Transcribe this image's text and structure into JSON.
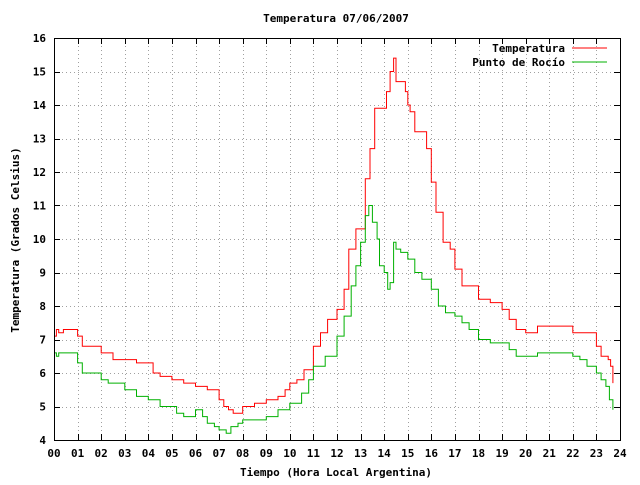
{
  "chart_data": {
    "type": "line",
    "title": "Temperatura 07/06/2007",
    "xlabel": "Tiempo (Hora Local Argentina)",
    "ylabel": "Temperatura (Grados Celsius)",
    "xlim": [
      0,
      24
    ],
    "ylim": [
      4,
      16
    ],
    "x_ticks": [
      "00",
      "01",
      "02",
      "03",
      "04",
      "05",
      "06",
      "07",
      "08",
      "09",
      "10",
      "11",
      "12",
      "13",
      "14",
      "15",
      "16",
      "17",
      "18",
      "19",
      "20",
      "21",
      "22",
      "23",
      "24"
    ],
    "y_ticks": [
      "4",
      "5",
      "6",
      "7",
      "8",
      "9",
      "10",
      "11",
      "12",
      "13",
      "14",
      "15",
      "16"
    ],
    "grid": true,
    "legend_position": "top-right",
    "series": [
      {
        "name": "Temperatura",
        "color": "#ff0000",
        "x": [
          0.0,
          0.1,
          0.2,
          0.25,
          0.4,
          0.5,
          1.0,
          1.2,
          1.5,
          2.0,
          2.5,
          3.0,
          3.5,
          4.0,
          4.2,
          4.5,
          5.0,
          5.5,
          6.0,
          6.5,
          7.0,
          7.2,
          7.4,
          7.6,
          8.0,
          8.5,
          9.0,
          9.5,
          9.8,
          10.0,
          10.3,
          10.6,
          11.0,
          11.3,
          11.6,
          12.0,
          12.3,
          12.5,
          12.8,
          13.0,
          13.2,
          13.4,
          13.6,
          13.8,
          14.0,
          14.1,
          14.25,
          14.4,
          14.5,
          14.6,
          14.75,
          14.9,
          15.0,
          15.1,
          15.3,
          15.5,
          15.8,
          16.0,
          16.2,
          16.5,
          16.8,
          17.0,
          17.3,
          17.6,
          18.0,
          18.5,
          19.0,
          19.3,
          19.6,
          20.0,
          20.5,
          21.0,
          21.5,
          22.0,
          22.3,
          22.6,
          23.0,
          23.2,
          23.35,
          23.5,
          23.6
        ],
        "y": [
          7.1,
          7.3,
          7.2,
          7.2,
          7.3,
          7.3,
          7.1,
          6.8,
          6.8,
          6.6,
          6.4,
          6.4,
          6.3,
          6.3,
          6.0,
          5.9,
          5.8,
          5.7,
          5.6,
          5.5,
          5.2,
          5.0,
          4.9,
          4.8,
          5.0,
          5.1,
          5.2,
          5.3,
          5.5,
          5.7,
          5.8,
          6.1,
          6.8,
          7.2,
          7.6,
          7.9,
          8.5,
          9.7,
          10.3,
          10.3,
          11.8,
          12.7,
          13.9,
          13.9,
          13.9,
          14.4,
          15.0,
          15.4,
          14.7,
          14.7,
          14.7,
          14.4,
          14.0,
          13.8,
          13.2,
          13.2,
          12.7,
          11.7,
          10.8,
          9.9,
          9.7,
          9.1,
          8.6,
          8.6,
          8.2,
          8.1,
          7.9,
          7.6,
          7.3,
          7.2,
          7.4,
          7.4,
          7.4,
          7.2,
          7.2,
          7.2,
          6.8,
          6.5,
          6.5,
          6.4,
          6.2
        ],
        "extra": {
          "end": [
            [
              23.7,
              5.7
            ]
          ]
        }
      },
      {
        "name": "Punto de Rocío",
        "color": "#00b000",
        "x": [
          0.0,
          0.1,
          0.2,
          0.5,
          1.0,
          1.2,
          1.5,
          2.0,
          2.3,
          2.5,
          3.0,
          3.5,
          4.0,
          4.2,
          4.5,
          5.0,
          5.2,
          5.5,
          6.0,
          6.3,
          6.5,
          6.8,
          7.0,
          7.3,
          7.5,
          7.8,
          8.0,
          8.5,
          9.0,
          9.5,
          10.0,
          10.5,
          10.8,
          11.0,
          11.5,
          12.0,
          12.3,
          12.6,
          12.8,
          13.0,
          13.2,
          13.35,
          13.5,
          13.7,
          13.8,
          14.0,
          14.15,
          14.25,
          14.4,
          14.5,
          14.7,
          15.0,
          15.3,
          15.6,
          16.0,
          16.3,
          16.6,
          17.0,
          17.3,
          17.6,
          18.0,
          18.5,
          19.0,
          19.3,
          19.6,
          20.0,
          20.5,
          21.0,
          21.5,
          22.0,
          22.3,
          22.6,
          23.0,
          23.2,
          23.4,
          23.55
        ],
        "y": [
          6.6,
          6.5,
          6.6,
          6.6,
          6.3,
          6.0,
          6.0,
          5.8,
          5.7,
          5.7,
          5.5,
          5.3,
          5.2,
          5.2,
          5.0,
          5.0,
          4.8,
          4.7,
          4.9,
          4.7,
          4.5,
          4.4,
          4.3,
          4.2,
          4.4,
          4.5,
          4.6,
          4.6,
          4.7,
          4.9,
          5.1,
          5.4,
          5.8,
          6.2,
          6.5,
          7.1,
          7.7,
          8.6,
          9.2,
          9.9,
          10.7,
          11.0,
          10.5,
          10.0,
          9.2,
          9.0,
          8.5,
          8.7,
          9.9,
          9.7,
          9.6,
          9.4,
          9.0,
          8.8,
          8.5,
          8.0,
          7.8,
          7.7,
          7.5,
          7.3,
          7.0,
          6.9,
          6.9,
          6.7,
          6.5,
          6.5,
          6.6,
          6.6,
          6.6,
          6.5,
          6.4,
          6.2,
          6.0,
          5.8,
          5.6,
          5.2
        ],
        "extra": {
          "end": [
            [
              23.7,
              4.9
            ]
          ]
        }
      }
    ]
  }
}
